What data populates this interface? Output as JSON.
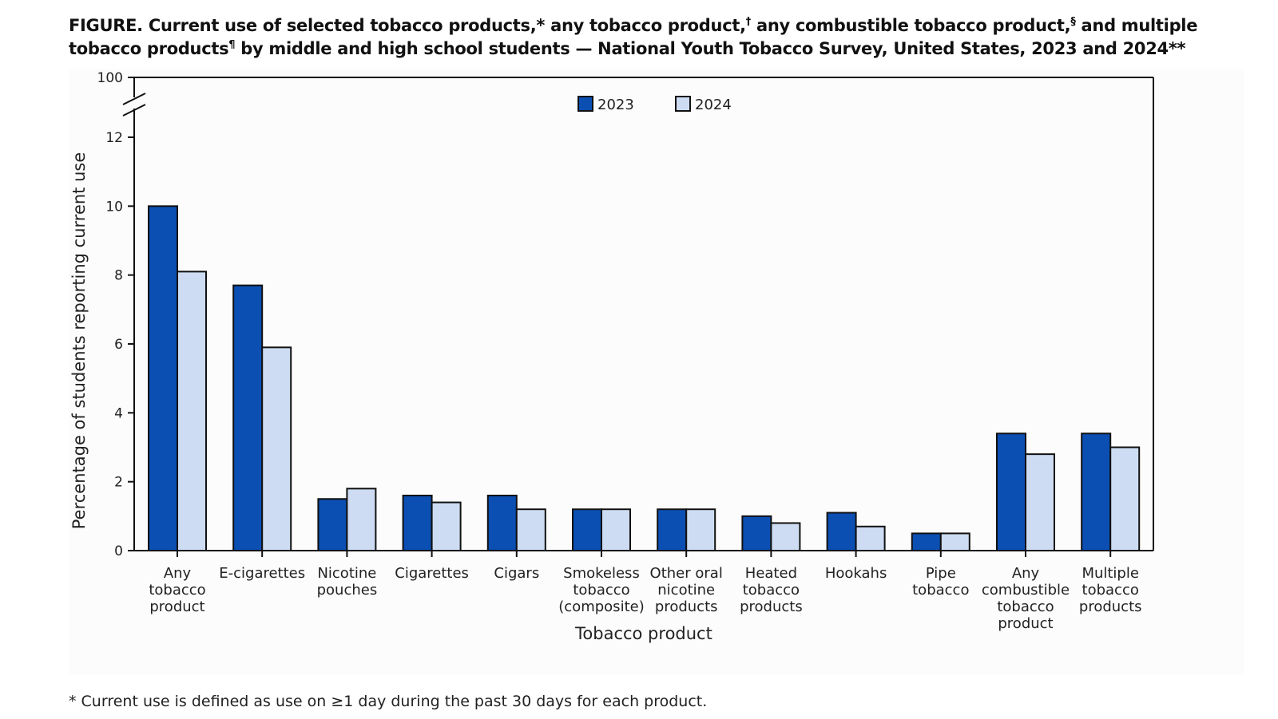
{
  "figure": {
    "title_lead": "FIGURE",
    "title_parts": [
      ". Current use of selected tobacco products,* any tobacco product,",
      "†",
      " any combustible tobacco product,",
      "§",
      " and multiple tobacco products",
      "¶",
      " by middle and high school students — National Youth Tobacco Survey, United States, 2023 and 2024**"
    ],
    "footnote": "* Current use is defined as use on ≥1 day during the past 30 days for each product."
  },
  "colors": {
    "2023": "#0b4fb3",
    "2024": "#cddcf2",
    "stroke": "#111111"
  },
  "chart_data": {
    "type": "bar",
    "title": "",
    "xlabel": "Tobacco product",
    "ylabel": "Percentage of students reporting current use",
    "ylim": [
      0,
      12
    ],
    "axis_break_top": 100,
    "yticks": [
      0,
      2,
      4,
      6,
      8,
      10,
      12
    ],
    "legend_position": "top-center",
    "categories": [
      [
        "Any",
        "tobacco",
        "product"
      ],
      [
        "E-cigarettes"
      ],
      [
        "Nicotine",
        "pouches"
      ],
      [
        "Cigarettes"
      ],
      [
        "Cigars"
      ],
      [
        "Smokeless",
        "tobacco",
        "(composite)"
      ],
      [
        "Other oral",
        "nicotine",
        "products"
      ],
      [
        "Heated",
        "tobacco",
        "products"
      ],
      [
        "Hookahs"
      ],
      [
        "Pipe",
        "tobacco"
      ],
      [
        "Any",
        "combustible",
        "tobacco",
        "product"
      ],
      [
        "Multiple",
        "tobacco",
        "products"
      ]
    ],
    "series": [
      {
        "name": "2023",
        "values": [
          10.0,
          7.7,
          1.5,
          1.6,
          1.6,
          1.2,
          1.2,
          1.0,
          1.1,
          0.5,
          3.4,
          3.4
        ]
      },
      {
        "name": "2024",
        "values": [
          8.1,
          5.9,
          1.8,
          1.4,
          1.2,
          1.2,
          1.2,
          0.8,
          0.7,
          0.5,
          2.8,
          3.0
        ]
      }
    ]
  }
}
